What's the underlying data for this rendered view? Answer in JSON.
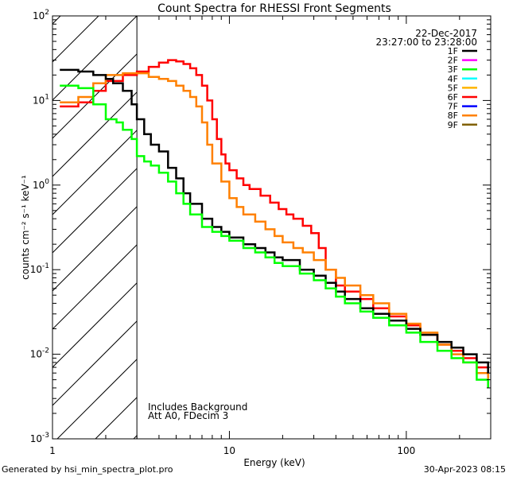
{
  "chart_data": {
    "type": "line",
    "title": "Count Spectra for RHESSI Front Segments",
    "date": "22-Dec-2017",
    "time_range": "23:27:00 to 23:28:00",
    "xlabel": "Energy (keV)",
    "ylabel": "counts cm⁻² s⁻¹ keV⁻¹",
    "x_scale": "log",
    "y_scale": "log",
    "xlim": [
      1,
      300
    ],
    "ylim": [
      0.001,
      100
    ],
    "x_ticks": [
      {
        "value": 1,
        "label": "1"
      },
      {
        "value": 10,
        "label": "10"
      },
      {
        "value": 100,
        "label": "100"
      }
    ],
    "y_ticks": [
      {
        "exp": 2,
        "label": "10",
        "sup": "2"
      },
      {
        "exp": 1,
        "label": "10",
        "sup": "1"
      },
      {
        "exp": 0,
        "label": "10",
        "sup": "0"
      },
      {
        "exp": -1,
        "label": "10",
        "sup": "-1"
      },
      {
        "exp": -2,
        "label": "10",
        "sup": "-2"
      },
      {
        "exp": -3,
        "label": "10",
        "sup": "-3"
      }
    ],
    "shaded_region_below_keV": 3,
    "annotations": [
      "Includes Background",
      "Att A0, FDecim 3"
    ],
    "legend": [
      {
        "label": "1F",
        "color": "#000000"
      },
      {
        "label": "2F",
        "color": "#ff00ff"
      },
      {
        "label": "3F",
        "color": "#00ff00"
      },
      {
        "label": "4F",
        "color": "#00ffff"
      },
      {
        "label": "5F",
        "color": "#ffb400"
      },
      {
        "label": "6F",
        "color": "#ff0000"
      },
      {
        "label": "7F",
        "color": "#0000ff"
      },
      {
        "label": "8F",
        "color": "#ff8000"
      },
      {
        "label": "9F",
        "color": "#806000"
      }
    ],
    "series": [
      {
        "name": "6F",
        "color": "#ff0000",
        "points": [
          [
            1.1,
            8.5
          ],
          [
            1.4,
            9.5
          ],
          [
            1.7,
            13
          ],
          [
            2.0,
            17
          ],
          [
            2.5,
            20
          ],
          [
            3.0,
            22
          ],
          [
            3.5,
            25
          ],
          [
            4.0,
            28
          ],
          [
            4.5,
            30
          ],
          [
            5.0,
            29
          ],
          [
            5.5,
            27
          ],
          [
            6.0,
            24
          ],
          [
            6.5,
            20
          ],
          [
            7.0,
            15
          ],
          [
            7.5,
            10
          ],
          [
            8.0,
            6
          ],
          [
            8.5,
            3.5
          ],
          [
            9.0,
            2.3
          ],
          [
            9.5,
            1.8
          ],
          [
            10,
            1.5
          ],
          [
            11,
            1.2
          ],
          [
            12,
            1.0
          ],
          [
            13,
            0.9
          ],
          [
            15,
            0.75
          ],
          [
            17,
            0.62
          ],
          [
            19,
            0.52
          ],
          [
            21,
            0.45
          ],
          [
            23,
            0.4
          ],
          [
            26,
            0.33
          ],
          [
            29,
            0.27
          ],
          [
            32,
            0.18
          ],
          [
            35,
            0.1
          ],
          [
            40,
            0.065
          ],
          [
            45,
            0.055
          ],
          [
            55,
            0.045
          ],
          [
            65,
            0.035
          ],
          [
            80,
            0.028
          ],
          [
            100,
            0.022
          ],
          [
            120,
            0.017
          ],
          [
            150,
            0.013
          ],
          [
            180,
            0.011
          ],
          [
            210,
            0.009
          ],
          [
            250,
            0.007
          ],
          [
            290,
            0.006
          ]
        ]
      },
      {
        "name": "8F",
        "color": "#ff8000",
        "points": [
          [
            1.1,
            9.5
          ],
          [
            1.4,
            11
          ],
          [
            1.7,
            16
          ],
          [
            2.0,
            20
          ],
          [
            2.5,
            21
          ],
          [
            3.0,
            21
          ],
          [
            3.5,
            19
          ],
          [
            4.0,
            18
          ],
          [
            4.5,
            17
          ],
          [
            5.0,
            15
          ],
          [
            5.5,
            13
          ],
          [
            6.0,
            11
          ],
          [
            6.5,
            8.5
          ],
          [
            7.0,
            5.5
          ],
          [
            7.5,
            3
          ],
          [
            8.0,
            1.8
          ],
          [
            9.0,
            1.1
          ],
          [
            10,
            0.7
          ],
          [
            11,
            0.55
          ],
          [
            12,
            0.45
          ],
          [
            14,
            0.37
          ],
          [
            16,
            0.3
          ],
          [
            18,
            0.25
          ],
          [
            20,
            0.21
          ],
          [
            23,
            0.18
          ],
          [
            26,
            0.16
          ],
          [
            30,
            0.13
          ],
          [
            35,
            0.1
          ],
          [
            40,
            0.08
          ],
          [
            45,
            0.065
          ],
          [
            55,
            0.05
          ],
          [
            65,
            0.04
          ],
          [
            80,
            0.03
          ],
          [
            100,
            0.023
          ],
          [
            120,
            0.018
          ],
          [
            150,
            0.013
          ],
          [
            180,
            0.01
          ],
          [
            210,
            0.008
          ],
          [
            250,
            0.006
          ],
          [
            290,
            0.004
          ]
        ]
      },
      {
        "name": "1F",
        "color": "#000000",
        "points": [
          [
            1.1,
            23
          ],
          [
            1.4,
            22
          ],
          [
            1.7,
            20
          ],
          [
            2.0,
            18
          ],
          [
            2.2,
            16
          ],
          [
            2.5,
            13
          ],
          [
            2.8,
            9
          ],
          [
            3.0,
            6
          ],
          [
            3.3,
            4
          ],
          [
            3.6,
            3
          ],
          [
            4.0,
            2.5
          ],
          [
            4.5,
            1.6
          ],
          [
            5.0,
            1.2
          ],
          [
            5.5,
            0.8
          ],
          [
            6.0,
            0.6
          ],
          [
            7.0,
            0.4
          ],
          [
            8.0,
            0.32
          ],
          [
            9.0,
            0.28
          ],
          [
            10,
            0.24
          ],
          [
            12,
            0.2
          ],
          [
            14,
            0.18
          ],
          [
            16,
            0.16
          ],
          [
            18,
            0.14
          ],
          [
            20,
            0.13
          ],
          [
            25,
            0.1
          ],
          [
            30,
            0.085
          ],
          [
            35,
            0.07
          ],
          [
            40,
            0.055
          ],
          [
            45,
            0.045
          ],
          [
            55,
            0.035
          ],
          [
            65,
            0.03
          ],
          [
            80,
            0.025
          ],
          [
            100,
            0.02
          ],
          [
            120,
            0.017
          ],
          [
            150,
            0.014
          ],
          [
            180,
            0.012
          ],
          [
            210,
            0.01
          ],
          [
            250,
            0.008
          ],
          [
            290,
            0.006
          ]
        ]
      },
      {
        "name": "3F",
        "color": "#00ff00",
        "points": [
          [
            1.1,
            15
          ],
          [
            1.4,
            14
          ],
          [
            1.7,
            9
          ],
          [
            2.0,
            6
          ],
          [
            2.3,
            5.5
          ],
          [
            2.5,
            4.5
          ],
          [
            2.8,
            3.5
          ],
          [
            3.0,
            2.2
          ],
          [
            3.3,
            1.9
          ],
          [
            3.6,
            1.7
          ],
          [
            4.0,
            1.4
          ],
          [
            4.5,
            1.1
          ],
          [
            5.0,
            0.8
          ],
          [
            5.5,
            0.6
          ],
          [
            6.0,
            0.45
          ],
          [
            7.0,
            0.32
          ],
          [
            8.0,
            0.28
          ],
          [
            9.0,
            0.25
          ],
          [
            10,
            0.22
          ],
          [
            12,
            0.18
          ],
          [
            14,
            0.16
          ],
          [
            16,
            0.14
          ],
          [
            18,
            0.12
          ],
          [
            20,
            0.11
          ],
          [
            25,
            0.09
          ],
          [
            30,
            0.075
          ],
          [
            35,
            0.06
          ],
          [
            40,
            0.048
          ],
          [
            45,
            0.04
          ],
          [
            55,
            0.032
          ],
          [
            65,
            0.027
          ],
          [
            80,
            0.022
          ],
          [
            100,
            0.018
          ],
          [
            120,
            0.014
          ],
          [
            150,
            0.011
          ],
          [
            180,
            0.009
          ],
          [
            210,
            0.008
          ],
          [
            250,
            0.005
          ],
          [
            290,
            0.004
          ]
        ]
      }
    ]
  },
  "footer": {
    "left": "Generated by hsi_min_spectra_plot.pro",
    "right": "30-Apr-2023 08:15"
  }
}
